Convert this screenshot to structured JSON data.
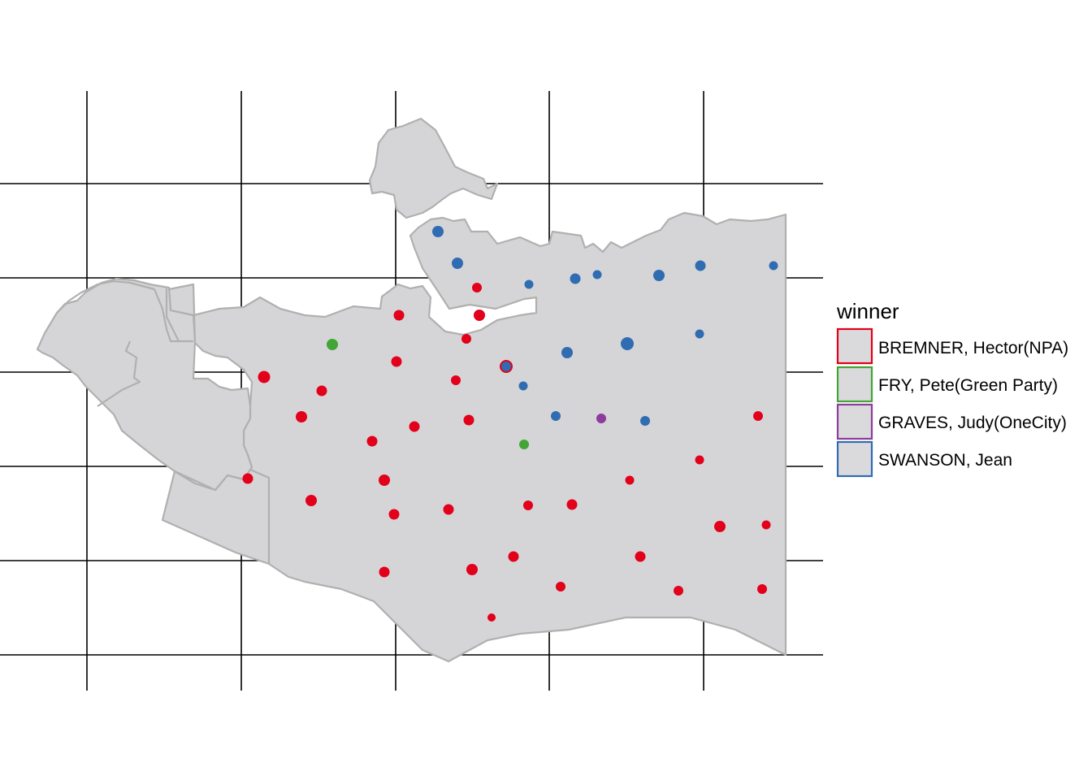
{
  "legend": {
    "title": "winner",
    "entries": [
      {
        "label": "BREMNER, Hector(NPA)",
        "color": "#E3001B"
      },
      {
        "label": "FRY, Pete(Green Party)",
        "color": "#43A535"
      },
      {
        "label": "GRAVES, Judy(OneCity)",
        "color": "#8E3B9E"
      },
      {
        "label": "SWANSON, Jean",
        "color": "#2F6CB2"
      }
    ]
  },
  "map": {
    "fill": "#D5D5D7",
    "boundary_color": "#B0B0B0",
    "grid_color": "#000000",
    "point_categories": [
      "BREMNER, Hector(NPA)",
      "FRY, Pete(Green Party)",
      "GRAVES, Judy(OneCity)",
      "SWANSON, Jean"
    ]
  }
}
